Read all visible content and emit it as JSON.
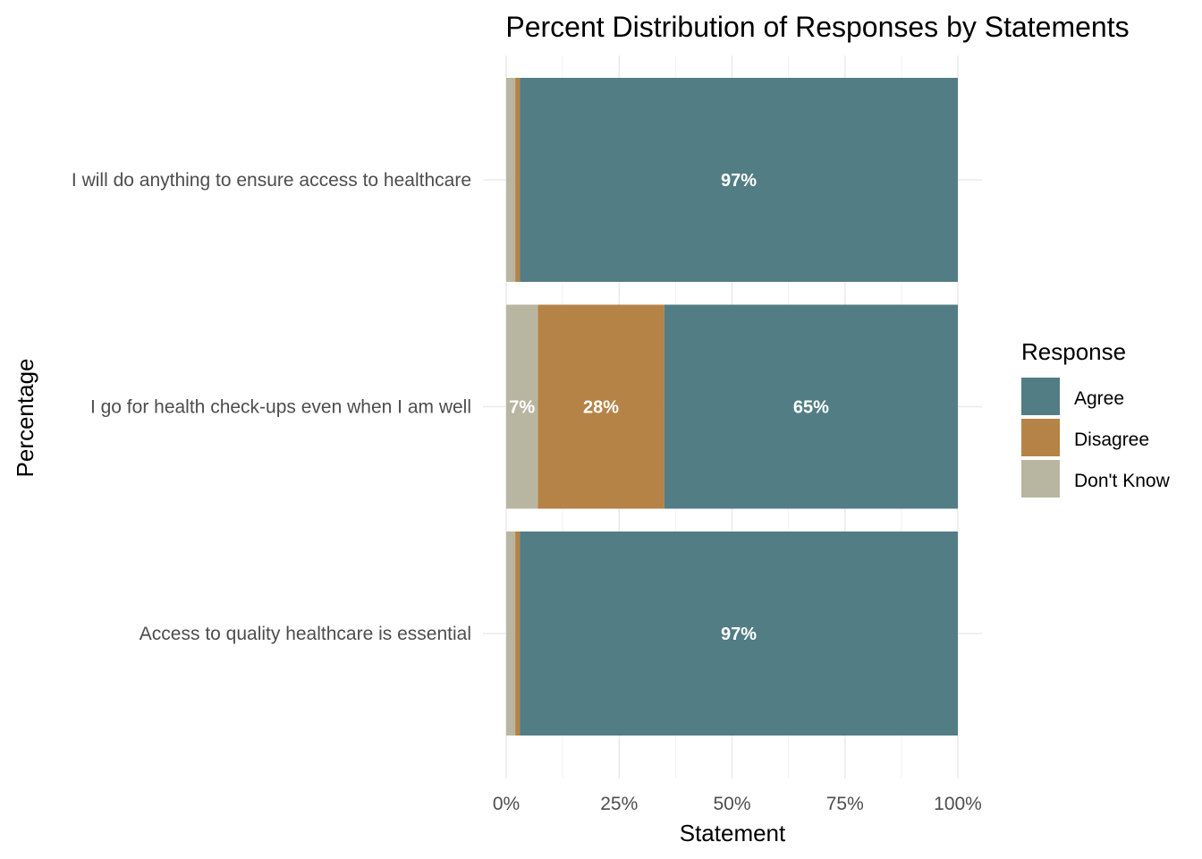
{
  "chart_data": {
    "type": "bar",
    "orientation": "horizontal",
    "stacked": true,
    "title": "Percent Distribution of Responses by Statements",
    "xlabel": "Statement",
    "ylabel": "Percentage",
    "xlim": [
      0,
      100
    ],
    "x_ticks": [
      "0%",
      "25%",
      "50%",
      "75%",
      "100%"
    ],
    "categories": [
      "I will do anything to ensure access to healthcare",
      "I go for health check-ups even when I am well",
      "Access to quality healthcare is essential"
    ],
    "series": [
      {
        "name": "Don't Know",
        "color": "#b8b6a0",
        "values": [
          2,
          7,
          2
        ],
        "labels": [
          "",
          "7%",
          ""
        ]
      },
      {
        "name": "Disagree",
        "color": "#b68346",
        "values": [
          1,
          28,
          1
        ],
        "labels": [
          "",
          "28%",
          ""
        ]
      },
      {
        "name": "Agree",
        "color": "#527d84",
        "values": [
          97,
          65,
          97
        ],
        "labels": [
          "97%",
          "65%",
          "97%"
        ]
      }
    ],
    "legend": {
      "title": "Response",
      "placement": "right",
      "entries": [
        "Agree",
        "Disagree",
        "Don't Know"
      ]
    },
    "grid": true
  }
}
